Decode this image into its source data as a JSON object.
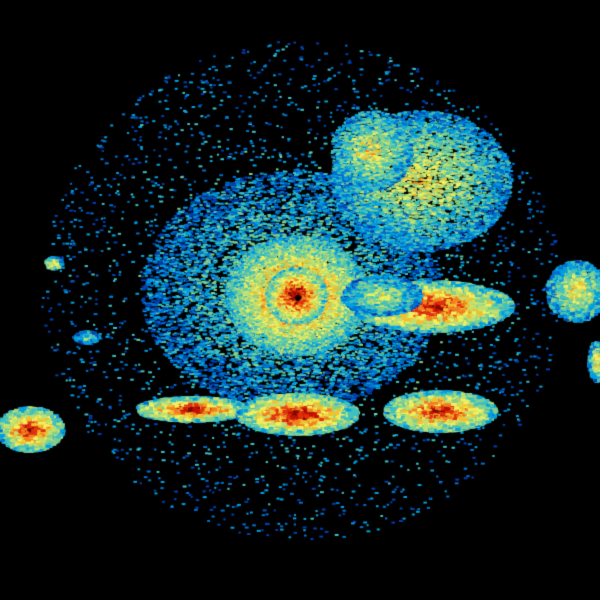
{
  "image": {
    "kind": "radar-reflectivity-ppi",
    "background": "#000000",
    "palette": [
      "#0040b0",
      "#0070d0",
      "#00a0e0",
      "#40c0c0",
      "#80d090",
      "#c0e070",
      "#f0f060",
      "#f0c030",
      "#f08020",
      "#e03010",
      "#c01000",
      "#800800"
    ],
    "echo_regions": [
      {
        "name": "central-clutter",
        "intensity": 0.85
      },
      {
        "name": "northeast-light-rain",
        "intensity": 0.45
      },
      {
        "name": "east-band",
        "intensity": 0.9
      },
      {
        "name": "south-band-west",
        "intensity": 0.95
      },
      {
        "name": "south-band-east",
        "intensity": 0.9
      },
      {
        "name": "far-west-cell",
        "intensity": 0.9
      },
      {
        "name": "far-east-cell",
        "intensity": 0.6
      }
    ]
  }
}
